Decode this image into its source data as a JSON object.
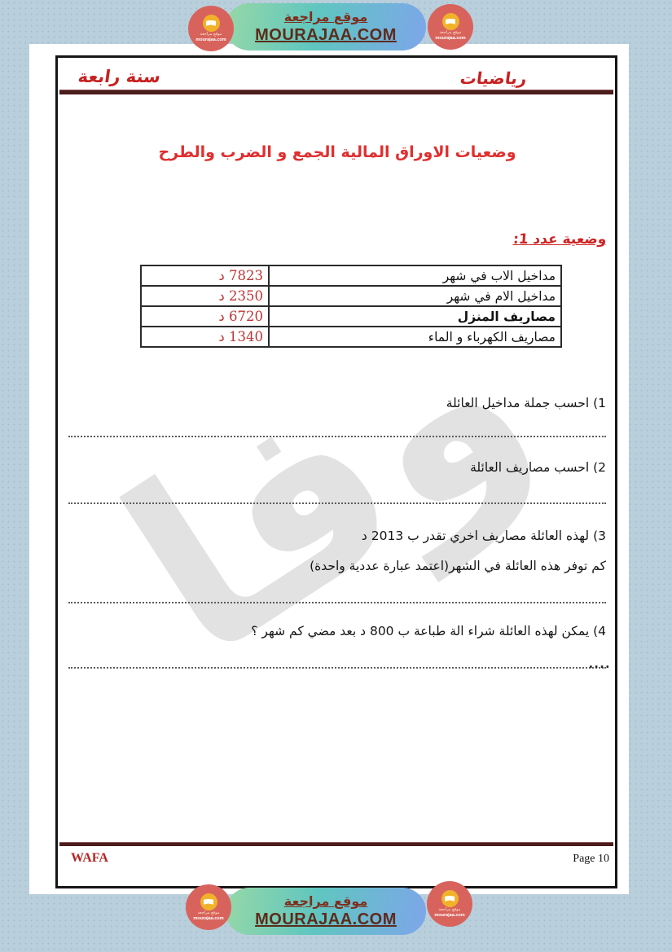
{
  "banner": {
    "site_name_ar": "موقع مراجعة",
    "site_domain": "MOURAJAA.COM",
    "badge": {
      "line1": "موقع مراجعة",
      "line2": "mourajaa.com"
    }
  },
  "document": {
    "subject": "رياضيات",
    "grade": "سنة رابعة",
    "title": "وضعيات الاوراق المالية الجمع و الضرب والطرح",
    "exercise_heading": "وضعية عدد 1:",
    "table": {
      "rows": [
        {
          "label": "مداخيل الاب في شهر",
          "value": "7823 د"
        },
        {
          "label": "مداخيل الام في شهر",
          "value": "2350 د"
        },
        {
          "label": "مصاريف المنزل",
          "value": "6720 د"
        },
        {
          "label": "مصاريف الكهرباء و الماء",
          "value": "1340 د"
        }
      ]
    },
    "questions": {
      "q1": "1) احسب جملة مداخيل العائلة",
      "q2": "2) احسب مصاريف العائلة",
      "q3_line1": "3) لهذه العائلة مصاريف اخري تقدر ب 2013 د",
      "q3_line2": "كم توفر هذه العائلة في الشهر(اعتمد عبارة عددية واحدة)",
      "q4": "4) يمكن لهذه العائلة شراء الة طباعة ب 800 د بعد مضي كم شهر ؟",
      "trailing_dots": "...."
    },
    "watermark": "وفا",
    "footer": {
      "author": "WAFA",
      "page_label": "Page 10"
    }
  },
  "colors": {
    "canvas_bg": "#b9cfdc",
    "pill_gradient_start": "#97d8a6",
    "pill_gradient_mid": "#5fc6c0",
    "pill_gradient_end": "#7da6ea",
    "badge_red": "#d8635d",
    "badge_yellow": "#f1b22a",
    "banner_text_brown": "#5e2b1b",
    "header_red": "#c82121",
    "title_red": "#e02f2f",
    "heading_red": "#cf2424",
    "value_red": "#bf3434",
    "rule_maroon": "#4b1d1d",
    "text_black": "#151515"
  }
}
